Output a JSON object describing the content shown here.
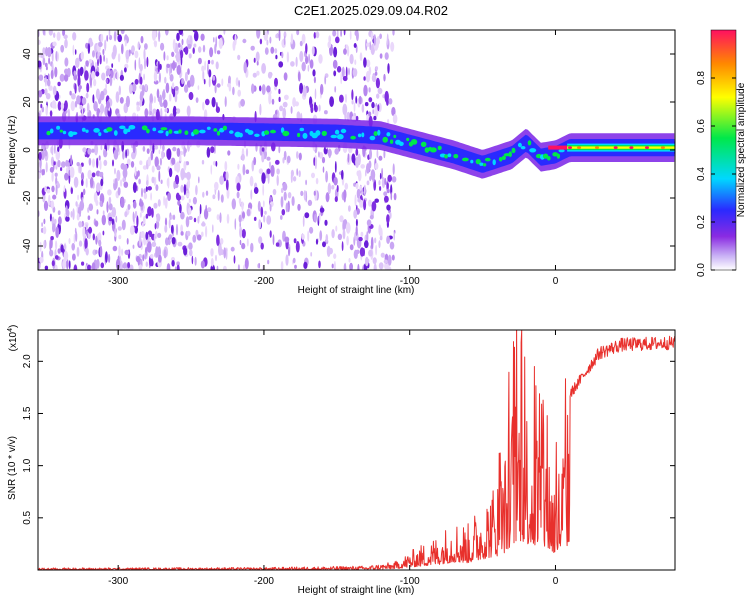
{
  "title": "C2E1.2025.029.09.04.R02",
  "colors": {
    "trace": "#e8302c",
    "spectrogram_scale": [
      "#ffffff",
      "#c8b0f5",
      "#8a2be2",
      "#2a2aff",
      "#00d8ff",
      "#00e84a",
      "#ffff00",
      "#ff8800",
      "#ff1060"
    ]
  },
  "chart_data": [
    {
      "type": "heatmap",
      "xlabel": "Height of straight line (km)",
      "ylabel": "Frequency (Hz)",
      "xlim": [
        -355,
        82
      ],
      "ylim": [
        -50,
        50
      ],
      "xticks": [
        -300,
        -200,
        -100,
        0
      ],
      "xtick_labels": [
        "-300",
        "-200",
        "-100",
        "0"
      ],
      "yticks": [
        -40,
        -20,
        0,
        20,
        40
      ],
      "ytick_labels": [
        "-40",
        "-20",
        "0",
        "20",
        "40"
      ],
      "colorbar": {
        "label": "Normalized spectral amplitude",
        "range": [
          0.0,
          1.0
        ],
        "ticks": [
          0.0,
          0.2,
          0.4,
          0.6,
          0.8
        ],
        "tick_labels": [
          "0.0",
          "0.2",
          "0.4",
          "0.6",
          "0.8"
        ]
      },
      "ridge": [
        {
          "x": -355,
          "freq": 8
        },
        {
          "x": -250,
          "freq": 8
        },
        {
          "x": -150,
          "freq": 7
        },
        {
          "x": -120,
          "freq": 6
        },
        {
          "x": -95,
          "freq": 2
        },
        {
          "x": -70,
          "freq": -2
        },
        {
          "x": -50,
          "freq": -6
        },
        {
          "x": -40,
          "freq": -4
        },
        {
          "x": -30,
          "freq": -2
        },
        {
          "x": -20,
          "freq": 3
        },
        {
          "x": -10,
          "freq": -3
        },
        {
          "x": 0,
          "freq": -2
        },
        {
          "x": 10,
          "freq": 1
        },
        {
          "x": 82,
          "freq": 1
        }
      ]
    },
    {
      "type": "line",
      "xlabel": "Height of straight line (km)",
      "ylabel": "SNR (10 * v/v)",
      "y_multiplier_label": "(x10",
      "y_multiplier_exp": "4",
      "y_multiplier_close": ")",
      "xlim": [
        -355,
        82
      ],
      "ylim": [
        0,
        23000
      ],
      "xticks": [
        -300,
        -200,
        -100,
        0
      ],
      "xtick_labels": [
        "-300",
        "-200",
        "-100",
        "0"
      ],
      "yticks": [
        5000,
        10000,
        15000,
        20000
      ],
      "ytick_labels": [
        "0.5",
        "1.0",
        "1.5",
        "2.0"
      ],
      "series": [
        {
          "envelope": [
            {
              "x": -355,
              "y": 200
            },
            {
              "x": -200,
              "y": 250
            },
            {
              "x": -130,
              "y": 400
            },
            {
              "x": -110,
              "y": 800
            },
            {
              "x": -100,
              "y": 1800
            },
            {
              "x": -80,
              "y": 3500
            },
            {
              "x": -70,
              "y": 5000
            },
            {
              "x": -60,
              "y": 4500
            },
            {
              "x": -50,
              "y": 7000
            },
            {
              "x": -40,
              "y": 9000
            },
            {
              "x": -35,
              "y": 11000
            },
            {
              "x": -30,
              "y": 16000
            },
            {
              "x": -25,
              "y": 19000
            },
            {
              "x": -20,
              "y": 17000
            },
            {
              "x": -15,
              "y": 15000
            },
            {
              "x": -10,
              "y": 14500
            },
            {
              "x": -5,
              "y": 13000
            },
            {
              "x": 0,
              "y": 9000
            },
            {
              "x": 5,
              "y": 13000
            },
            {
              "x": 10,
              "y": 17000
            },
            {
              "x": 20,
              "y": 19000
            },
            {
              "x": 30,
              "y": 21000
            },
            {
              "x": 45,
              "y": 21800
            },
            {
              "x": 82,
              "y": 22000
            }
          ]
        }
      ]
    }
  ]
}
